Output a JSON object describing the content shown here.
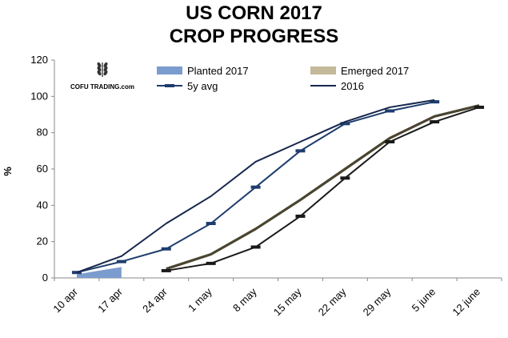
{
  "chart_data": {
    "type": "line",
    "title": "US CORN 2017",
    "subtitle": "CROP PROGRESS",
    "xlabel": "",
    "ylabel": "%",
    "ylim": [
      0,
      120
    ],
    "yticks": [
      0,
      20,
      40,
      60,
      80,
      100,
      120
    ],
    "categories": [
      "10 apr",
      "17 apr",
      "24 apr",
      "1 may",
      "8 may",
      "15 may",
      "22 may",
      "29 may",
      "5 june",
      "12 june"
    ],
    "grid": false,
    "legend": "top",
    "series": [
      {
        "name": "Planted 2017",
        "type": "area",
        "color": "#7b9ccf",
        "values": [
          2,
          6,
          null,
          null,
          null,
          null,
          null,
          null,
          null,
          null
        ]
      },
      {
        "name": "Emerged 2017",
        "type": "line",
        "color": "#4a4530",
        "legend_color": "#c4b99a",
        "values": [
          null,
          null,
          5,
          13,
          27,
          43,
          60,
          77,
          89,
          95
        ]
      },
      {
        "name": "5y avg",
        "type": "line-marker",
        "color": "#1f3d6e",
        "values": [
          3,
          9,
          16,
          30,
          50,
          70,
          85,
          92,
          97,
          null
        ]
      },
      {
        "name": "2016",
        "type": "line",
        "color": "#17284d",
        "values": [
          3,
          12,
          30,
          45,
          64,
          75,
          86,
          94,
          98,
          null
        ]
      },
      {
        "name": "",
        "type": "line-marker",
        "color": "#1a1a1a",
        "values": [
          null,
          null,
          4,
          8,
          17,
          34,
          55,
          75,
          86,
          94
        ]
      }
    ]
  },
  "logo": {
    "text": "COFU TRADING.com"
  }
}
